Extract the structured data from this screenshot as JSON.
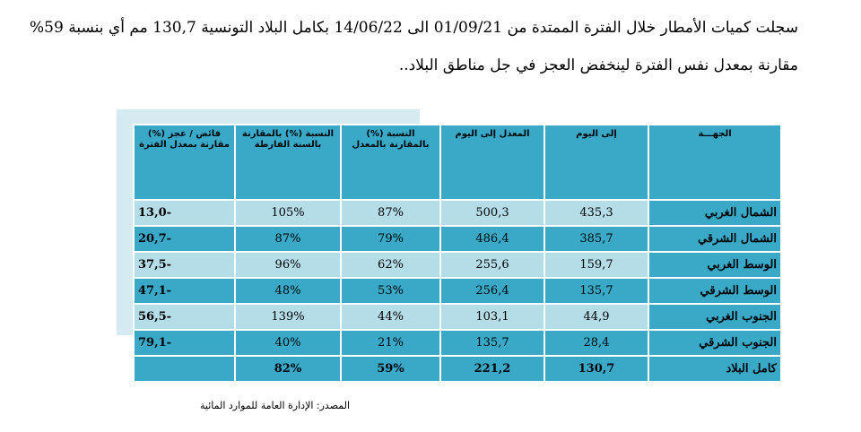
{
  "paragraph": {
    "line1": "سجلت كميات الأمطار خلال الفترة الممتدة من 01/09/21 الى 14/06/22 بكامل البلاد التونسية 130,7 مم أي بنسبة 59%",
    "line2": "مقارنة بمعدل نفس الفترة لينخفض العجز في جل مناطق البلاد.."
  },
  "table": {
    "headers": {
      "region": "الجهـــة",
      "to_date": "إلى اليوم",
      "avg_to_date": "المعدل إلى اليوم",
      "pct_avg": "النسبة (%) بالمقارنة بالمعدل",
      "pct_prev": "النسبة (%) بالمقارنة بالسنة الفارطة",
      "surplus": "فائض / عجز (%) مقارنة بمعدل الفترة"
    },
    "rows": [
      {
        "region": "الشمال الغربي",
        "to_date": "435,3",
        "avg": "500,3",
        "pct_avg": "87%",
        "pct_prev": "105%",
        "surplus": "-13,0"
      },
      {
        "region": "الشمال الشرقي",
        "to_date": "385,7",
        "avg": "486,4",
        "pct_avg": "79%",
        "pct_prev": "87%",
        "surplus": "-20,7"
      },
      {
        "region": "الوسط الغربي",
        "to_date": "159,7",
        "avg": "255,6",
        "pct_avg": "62%",
        "pct_prev": "96%",
        "surplus": "-37,5"
      },
      {
        "region": "الوسط الشرقي",
        "to_date": "135,7",
        "avg": "256,4",
        "pct_avg": "53%",
        "pct_prev": "48%",
        "surplus": "-47,1"
      },
      {
        "region": "الجنوب الغربي",
        "to_date": "44,9",
        "avg": "103,1",
        "pct_avg": "44%",
        "pct_prev": "139%",
        "surplus": "-56,5"
      },
      {
        "region": "الجنوب الشرقي",
        "to_date": "28,4",
        "avg": "135,7",
        "pct_avg": "21%",
        "pct_prev": "40%",
        "surplus": "-79,1"
      }
    ],
    "total": {
      "region": "كامل البلاد",
      "to_date": "130,7",
      "avg": "221,2",
      "pct_avg": "59%",
      "pct_prev": "82%",
      "surplus": ""
    }
  },
  "source": "المصدر:  الإدارة العامة للموارد المائية",
  "colors": {
    "header": "#3aa9c8",
    "light_row": "#b5dde8",
    "shadow": "#d6eaf2"
  }
}
